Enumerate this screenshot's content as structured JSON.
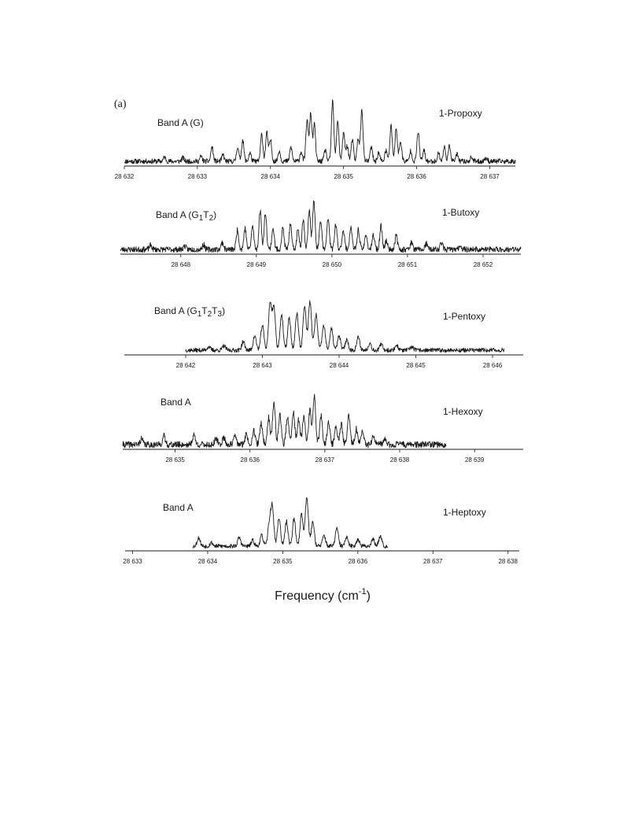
{
  "panel_letter": "(a)",
  "xlabel_main": "Frequency (cm",
  "xlabel_sup": "-1",
  "xlabel_end": ")",
  "chart_data": [
    {
      "type": "line",
      "molecule": "1-Propoxy",
      "band_label": [
        {
          "t": "Band A (G)",
          "sub": false
        }
      ],
      "xticks": [
        28632,
        28633,
        28634,
        28635,
        28636,
        28637
      ],
      "xtick_labels": [
        "28 632",
        "28 633",
        "28 634",
        "28 635",
        "28 636",
        "28 637"
      ],
      "xlim": [
        28632,
        28637.35
      ],
      "data_range": [
        28632,
        28637.35
      ],
      "baseline_noise": 0.035,
      "peaks": [
        [
          28632.55,
          0.06
        ],
        [
          28632.8,
          0.05
        ],
        [
          28633.05,
          0.07
        ],
        [
          28633.2,
          0.2
        ],
        [
          28633.35,
          0.09
        ],
        [
          28633.55,
          0.2
        ],
        [
          28633.62,
          0.3
        ],
        [
          28633.72,
          0.12
        ],
        [
          28633.88,
          0.38
        ],
        [
          28633.95,
          0.4
        ],
        [
          28634.0,
          0.3
        ],
        [
          28634.12,
          0.15
        ],
        [
          28634.28,
          0.2
        ],
        [
          28634.42,
          0.14
        ],
        [
          28634.5,
          0.58
        ],
        [
          28634.55,
          0.68
        ],
        [
          28634.6,
          0.52
        ],
        [
          28634.75,
          0.16
        ],
        [
          28634.85,
          0.85
        ],
        [
          28634.92,
          0.58
        ],
        [
          28635.0,
          0.4
        ],
        [
          28635.05,
          0.22
        ],
        [
          28635.12,
          0.3
        ],
        [
          28635.2,
          0.32
        ],
        [
          28635.25,
          0.72
        ],
        [
          28635.38,
          0.2
        ],
        [
          28635.48,
          0.12
        ],
        [
          28635.58,
          0.15
        ],
        [
          28635.65,
          0.5
        ],
        [
          28635.72,
          0.46
        ],
        [
          28635.78,
          0.28
        ],
        [
          28635.92,
          0.15
        ],
        [
          28636.02,
          0.42
        ],
        [
          28636.1,
          0.15
        ],
        [
          28636.3,
          0.12
        ],
        [
          28636.38,
          0.2
        ],
        [
          28636.45,
          0.22
        ],
        [
          28636.55,
          0.1
        ],
        [
          28636.75,
          0.06
        ],
        [
          28636.95,
          0.05
        ]
      ],
      "peak_width": 0.016,
      "seed": 11
    },
    {
      "type": "line",
      "molecule": "1-Butoxy",
      "band_label": [
        {
          "t": "Band A (G",
          "sub": false
        },
        {
          "t": "1",
          "sub": true
        },
        {
          "t": "T",
          "sub": false
        },
        {
          "t": "2",
          "sub": true
        },
        {
          "t": ")",
          "sub": false
        }
      ],
      "xticks": [
        28648,
        28649,
        28650,
        28651,
        28652
      ],
      "xtick_labels": [
        "28 648",
        "28 649",
        "28 650",
        "28 651",
        "28 652"
      ],
      "xlim": [
        28647.2,
        28652.5
      ],
      "data_range": [
        28647.2,
        28652.5
      ],
      "baseline_noise": 0.04,
      "peaks": [
        [
          28647.6,
          0.06
        ],
        [
          28648.05,
          0.05
        ],
        [
          28648.3,
          0.07
        ],
        [
          28648.55,
          0.1
        ],
        [
          28648.75,
          0.28
        ],
        [
          28648.85,
          0.3
        ],
        [
          28648.95,
          0.33
        ],
        [
          28649.05,
          0.55
        ],
        [
          28649.12,
          0.52
        ],
        [
          28649.22,
          0.3
        ],
        [
          28649.35,
          0.3
        ],
        [
          28649.45,
          0.35
        ],
        [
          28649.55,
          0.28
        ],
        [
          28649.62,
          0.42
        ],
        [
          28649.7,
          0.55
        ],
        [
          28649.76,
          0.68
        ],
        [
          28649.85,
          0.4
        ],
        [
          28649.95,
          0.44
        ],
        [
          28650.05,
          0.35
        ],
        [
          28650.15,
          0.28
        ],
        [
          28650.25,
          0.32
        ],
        [
          28650.35,
          0.28
        ],
        [
          28650.45,
          0.22
        ],
        [
          28650.55,
          0.2
        ],
        [
          28650.65,
          0.33
        ],
        [
          28650.72,
          0.12
        ],
        [
          28650.85,
          0.2
        ],
        [
          28651.05,
          0.1
        ],
        [
          28651.25,
          0.08
        ],
        [
          28651.45,
          0.1
        ],
        [
          28651.7,
          0.06
        ]
      ],
      "peak_width": 0.016,
      "seed": 23
    },
    {
      "type": "line",
      "molecule": "1-Pentoxy",
      "band_label": [
        {
          "t": "Band A (G",
          "sub": false
        },
        {
          "t": "1",
          "sub": true
        },
        {
          "t": "T",
          "sub": false
        },
        {
          "t": "2",
          "sub": true
        },
        {
          "t": "T",
          "sub": false
        },
        {
          "t": "3",
          "sub": true
        },
        {
          "t": ")",
          "sub": false
        }
      ],
      "xticks": [
        28642,
        28643,
        28644,
        28645,
        28646
      ],
      "xtick_labels": [
        "28 642",
        "28 643",
        "28 644",
        "28 645",
        "28 646"
      ],
      "xlim": [
        28641.2,
        28646.4
      ],
      "data_range": [
        28642.0,
        28646.15
      ],
      "baseline_noise": 0.03,
      "peaks": [
        [
          28642.3,
          0.05
        ],
        [
          28642.5,
          0.06
        ],
        [
          28642.75,
          0.12
        ],
        [
          28642.9,
          0.2
        ],
        [
          28643.0,
          0.35
        ],
        [
          28643.1,
          0.65
        ],
        [
          28643.15,
          0.6
        ],
        [
          28643.25,
          0.5
        ],
        [
          28643.35,
          0.45
        ],
        [
          28643.45,
          0.52
        ],
        [
          28643.55,
          0.62
        ],
        [
          28643.62,
          0.68
        ],
        [
          28643.7,
          0.5
        ],
        [
          28643.8,
          0.35
        ],
        [
          28643.9,
          0.3
        ],
        [
          28644.0,
          0.2
        ],
        [
          28644.1,
          0.15
        ],
        [
          28644.25,
          0.18
        ],
        [
          28644.4,
          0.1
        ],
        [
          28644.55,
          0.08
        ],
        [
          28644.75,
          0.07
        ],
        [
          28644.95,
          0.05
        ]
      ],
      "peak_width": 0.02,
      "seed": 37
    },
    {
      "type": "line",
      "molecule": "1-Hexoxy",
      "band_label": [
        {
          "t": "Band A",
          "sub": false
        }
      ],
      "xticks": [
        28635,
        28636,
        28637,
        28638,
        28639
      ],
      "xtick_labels": [
        "28 635",
        "28 636",
        "28 637",
        "28 638",
        "28 639"
      ],
      "xlim": [
        28634.3,
        28639.65
      ],
      "data_range": [
        28634.3,
        28638.62
      ],
      "baseline_noise": 0.045,
      "peaks": [
        [
          28634.55,
          0.08
        ],
        [
          28634.85,
          0.12
        ],
        [
          28635.25,
          0.14
        ],
        [
          28635.55,
          0.08
        ],
        [
          28635.65,
          0.1
        ],
        [
          28635.8,
          0.12
        ],
        [
          28635.95,
          0.15
        ],
        [
          28636.05,
          0.2
        ],
        [
          28636.15,
          0.3
        ],
        [
          28636.25,
          0.38
        ],
        [
          28636.32,
          0.6
        ],
        [
          28636.4,
          0.42
        ],
        [
          28636.5,
          0.38
        ],
        [
          28636.58,
          0.45
        ],
        [
          28636.65,
          0.35
        ],
        [
          28636.72,
          0.38
        ],
        [
          28636.8,
          0.48
        ],
        [
          28636.86,
          0.68
        ],
        [
          28636.95,
          0.4
        ],
        [
          28637.05,
          0.32
        ],
        [
          28637.15,
          0.25
        ],
        [
          28637.22,
          0.28
        ],
        [
          28637.32,
          0.4
        ],
        [
          28637.42,
          0.22
        ],
        [
          28637.5,
          0.18
        ],
        [
          28637.65,
          0.12
        ],
        [
          28637.8,
          0.08
        ],
        [
          28638.0,
          0.05
        ]
      ],
      "peak_width": 0.018,
      "seed": 41
    },
    {
      "type": "line",
      "molecule": "1-Heptoxy",
      "band_label": [
        {
          "t": "Band A",
          "sub": false
        }
      ],
      "xticks": [
        28633,
        28634,
        28635,
        28636,
        28637,
        28638
      ],
      "xtick_labels": [
        "28 633",
        "28 634",
        "28 635",
        "28 636",
        "28 637",
        "28 638"
      ],
      "xlim": [
        28632.9,
        28638.15
      ],
      "data_range": [
        28633.8,
        28636.4
      ],
      "baseline_noise": 0.03,
      "peaks": [
        [
          28633.88,
          0.12
        ],
        [
          28634.05,
          0.05
        ],
        [
          28634.42,
          0.12
        ],
        [
          28634.6,
          0.08
        ],
        [
          28634.72,
          0.15
        ],
        [
          28634.82,
          0.3
        ],
        [
          28634.86,
          0.55
        ],
        [
          28634.95,
          0.4
        ],
        [
          28635.05,
          0.35
        ],
        [
          28635.15,
          0.38
        ],
        [
          28635.25,
          0.45
        ],
        [
          28635.32,
          0.7
        ],
        [
          28635.4,
          0.35
        ],
        [
          28635.55,
          0.15
        ],
        [
          28635.72,
          0.25
        ],
        [
          28635.85,
          0.12
        ],
        [
          28636.0,
          0.1
        ],
        [
          28636.2,
          0.1
        ],
        [
          28636.3,
          0.15
        ]
      ],
      "peak_width": 0.02,
      "seed": 53
    }
  ]
}
